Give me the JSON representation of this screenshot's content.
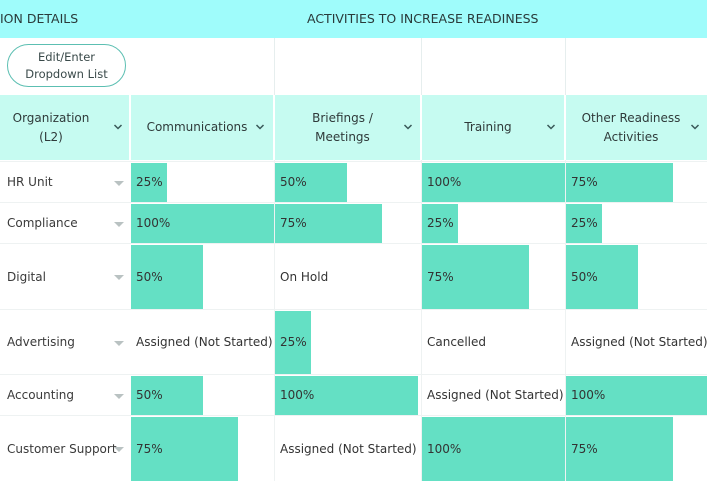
{
  "banner": {
    "left_title": "ION DETAILS",
    "right_title": "ACTIVITIES TO INCREASE READINESS"
  },
  "toolbar": {
    "edit_button_label": "Edit/Enter\nDropdown List"
  },
  "columns": [
    {
      "label": "Organization\n(L2)"
    },
    {
      "label": "Communications"
    },
    {
      "label": "Briefings /\nMeetings"
    },
    {
      "label": "Training"
    },
    {
      "label": "Other Readiness\nActivities"
    }
  ],
  "rows": [
    {
      "org": "HR Unit",
      "cells": [
        {
          "text": "25%",
          "level": 0.25
        },
        {
          "text": "50%",
          "level": 0.5
        },
        {
          "text": "100%",
          "level": 1.0
        },
        {
          "text": "75%",
          "level": 0.75
        }
      ]
    },
    {
      "org": "Compliance",
      "cells": [
        {
          "text": "100%",
          "level": 1.0
        },
        {
          "text": "75%",
          "level": 0.75
        },
        {
          "text": "25%",
          "level": 0.25
        },
        {
          "text": "25%",
          "level": 0.25
        }
      ]
    },
    {
      "org": "Digital",
      "cells": [
        {
          "text": "50%",
          "level": 0.5
        },
        {
          "text": "On Hold",
          "level": 0
        },
        {
          "text": "75%",
          "level": 0.75
        },
        {
          "text": "50%",
          "level": 0.5
        }
      ]
    },
    {
      "org": "Advertising",
      "cells": [
        {
          "text": "Assigned (Not Started)",
          "level": 0
        },
        {
          "text": "25%",
          "level": 0.25
        },
        {
          "text": "Cancelled",
          "level": 0
        },
        {
          "text": "Assigned (Not Started)",
          "level": 0
        }
      ]
    },
    {
      "org": "Accounting",
      "cells": [
        {
          "text": "50%",
          "level": 0.5
        },
        {
          "text": "100%",
          "level": 1.0
        },
        {
          "text": "Assigned (Not Started)",
          "level": 0
        },
        {
          "text": "100%",
          "level": 1.0
        }
      ]
    },
    {
      "org": "Customer Support",
      "cells": [
        {
          "text": "75%",
          "level": 0.75
        },
        {
          "text": "Assigned (Not Started)",
          "level": 0
        },
        {
          "text": "100%",
          "level": 1.0
        },
        {
          "text": "75%",
          "level": 0.75
        }
      ]
    }
  ],
  "colors": {
    "banner": "#9ffcfb",
    "header": "#c6fbf1",
    "bar": "#64e0c4",
    "button_border": "#5cbfb2"
  },
  "icons": {
    "header_dropdown": "chevron-down-icon",
    "row_dropdown": "caret-down-icon"
  }
}
